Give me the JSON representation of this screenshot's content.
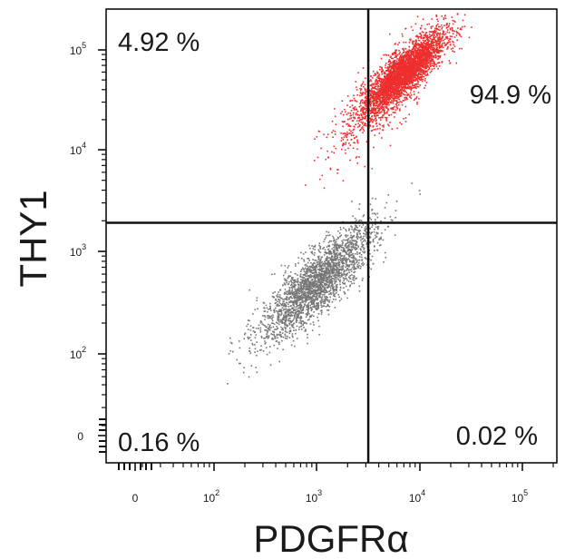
{
  "chart_data": {
    "type": "scatter",
    "title": "",
    "xlabel": "PDGFRα",
    "ylabel": "THY1",
    "x_ticks": [
      {
        "base": "0",
        "exp": ""
      },
      {
        "base": "10",
        "exp": "2"
      },
      {
        "base": "10",
        "exp": "3"
      },
      {
        "base": "10",
        "exp": "4"
      },
      {
        "base": "10",
        "exp": "5"
      }
    ],
    "y_ticks": [
      {
        "base": "0",
        "exp": ""
      },
      {
        "base": "10",
        "exp": "2"
      },
      {
        "base": "10",
        "exp": "3"
      },
      {
        "base": "10",
        "exp": "4"
      },
      {
        "base": "10",
        "exp": "5"
      }
    ],
    "gate": {
      "x": 3200,
      "y": 1900
    },
    "quadrants": {
      "upper_left": "4.92 %",
      "upper_right": "94.9 %",
      "lower_left": "0.16 %",
      "lower_right": "0.02 %"
    },
    "series": [
      {
        "color": "#ee2e2e",
        "clusters": [
          {
            "cx": 7000,
            "cy": 55000,
            "spread_x": 0.2,
            "spread_y": 0.2,
            "n": 3400
          },
          {
            "cx": 4500,
            "cy": 35000,
            "spread_x": 0.3,
            "spread_y": 0.35,
            "n": 500
          }
        ]
      },
      {
        "color": "#777777",
        "clusters": [
          {
            "cx": 1000,
            "cy": 500,
            "spread_x": 0.28,
            "spread_y": 0.28,
            "n": 2600
          }
        ]
      }
    ]
  }
}
